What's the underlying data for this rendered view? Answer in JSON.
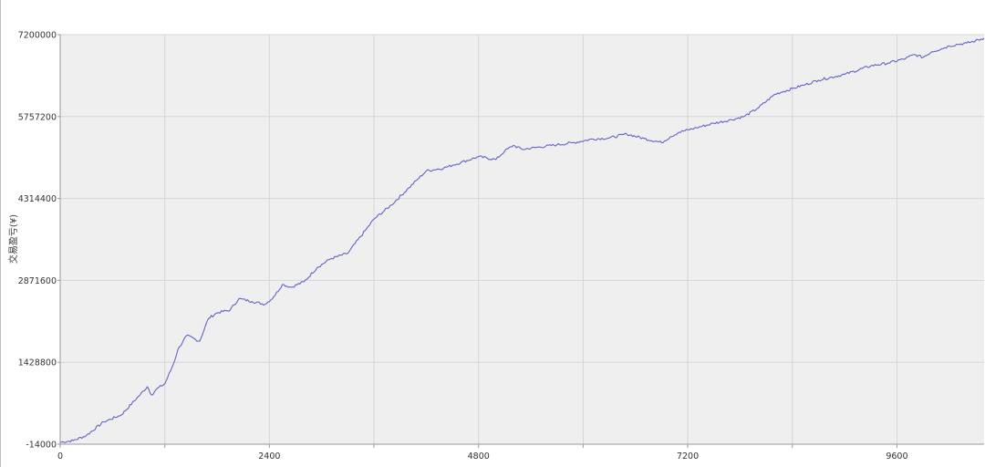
{
  "chart_data": {
    "type": "line",
    "title": "",
    "xlabel": "",
    "ylabel": "交易盈亏(¥)",
    "xlim": [
      0,
      10600
    ],
    "ylim": [
      -14000,
      7200000
    ],
    "x_ticks": [
      0,
      2400,
      4800,
      7200,
      9600
    ],
    "x_minor_ticks": [
      1200,
      3600,
      6000,
      8400
    ],
    "y_ticks": [
      -14000,
      1428800,
      2871600,
      4314400,
      5757200,
      7200000
    ],
    "x_tick_labels": [
      "0",
      "2400",
      "4800",
      "7200",
      "9600"
    ],
    "y_tick_labels": [
      "-14000",
      "1428800",
      "2871600",
      "4314400",
      "5757200",
      "7200000"
    ],
    "grid": true,
    "legend": "none",
    "colors": {
      "line": "#6464c8",
      "plot_bg": "#efefef",
      "grid": "#d6d6d6",
      "axis": "#9a9a9a"
    },
    "series": [
      {
        "name": "",
        "x": [
          0,
          150,
          300,
          500,
          700,
          900,
          1000,
          1050,
          1100,
          1200,
          1300,
          1350,
          1450,
          1600,
          1700,
          1800,
          1950,
          2050,
          2200,
          2350,
          2450,
          2550,
          2650,
          2800,
          2950,
          3100,
          3300,
          3500,
          3600,
          3800,
          4000,
          4100,
          4200,
          4400,
          4500,
          4600,
          4800,
          5000,
          5100,
          5200,
          5300,
          5500,
          5700,
          5900,
          6100,
          6300,
          6500,
          6700,
          6900,
          7000,
          7100,
          7300,
          7500,
          7700,
          7850,
          8000,
          8200,
          8300,
          8400,
          8550,
          8700,
          9000,
          9300,
          9500,
          9700,
          9800,
          9900,
          10000,
          10150,
          10200,
          10300,
          10400,
          10500,
          10600
        ],
        "y": [
          20000,
          50000,
          140000,
          380000,
          500000,
          830000,
          1000000,
          850000,
          950000,
          1050000,
          1400000,
          1650000,
          1900000,
          1800000,
          2200000,
          2300000,
          2350000,
          2550000,
          2500000,
          2450000,
          2580000,
          2800000,
          2750000,
          2850000,
          3100000,
          3250000,
          3350000,
          3750000,
          3950000,
          4200000,
          4500000,
          4650000,
          4800000,
          4850000,
          4900000,
          4950000,
          5050000,
          5000000,
          5150000,
          5250000,
          5180000,
          5220000,
          5260000,
          5300000,
          5360000,
          5380000,
          5450000,
          5370000,
          5300000,
          5400000,
          5480000,
          5560000,
          5640000,
          5700000,
          5760000,
          5900000,
          6150000,
          6200000,
          6250000,
          6320000,
          6400000,
          6500000,
          6650000,
          6700000,
          6780000,
          6850000,
          6800000,
          6900000,
          6970000,
          7000000,
          7030000,
          7050000,
          7090000,
          7140000
        ]
      }
    ]
  }
}
